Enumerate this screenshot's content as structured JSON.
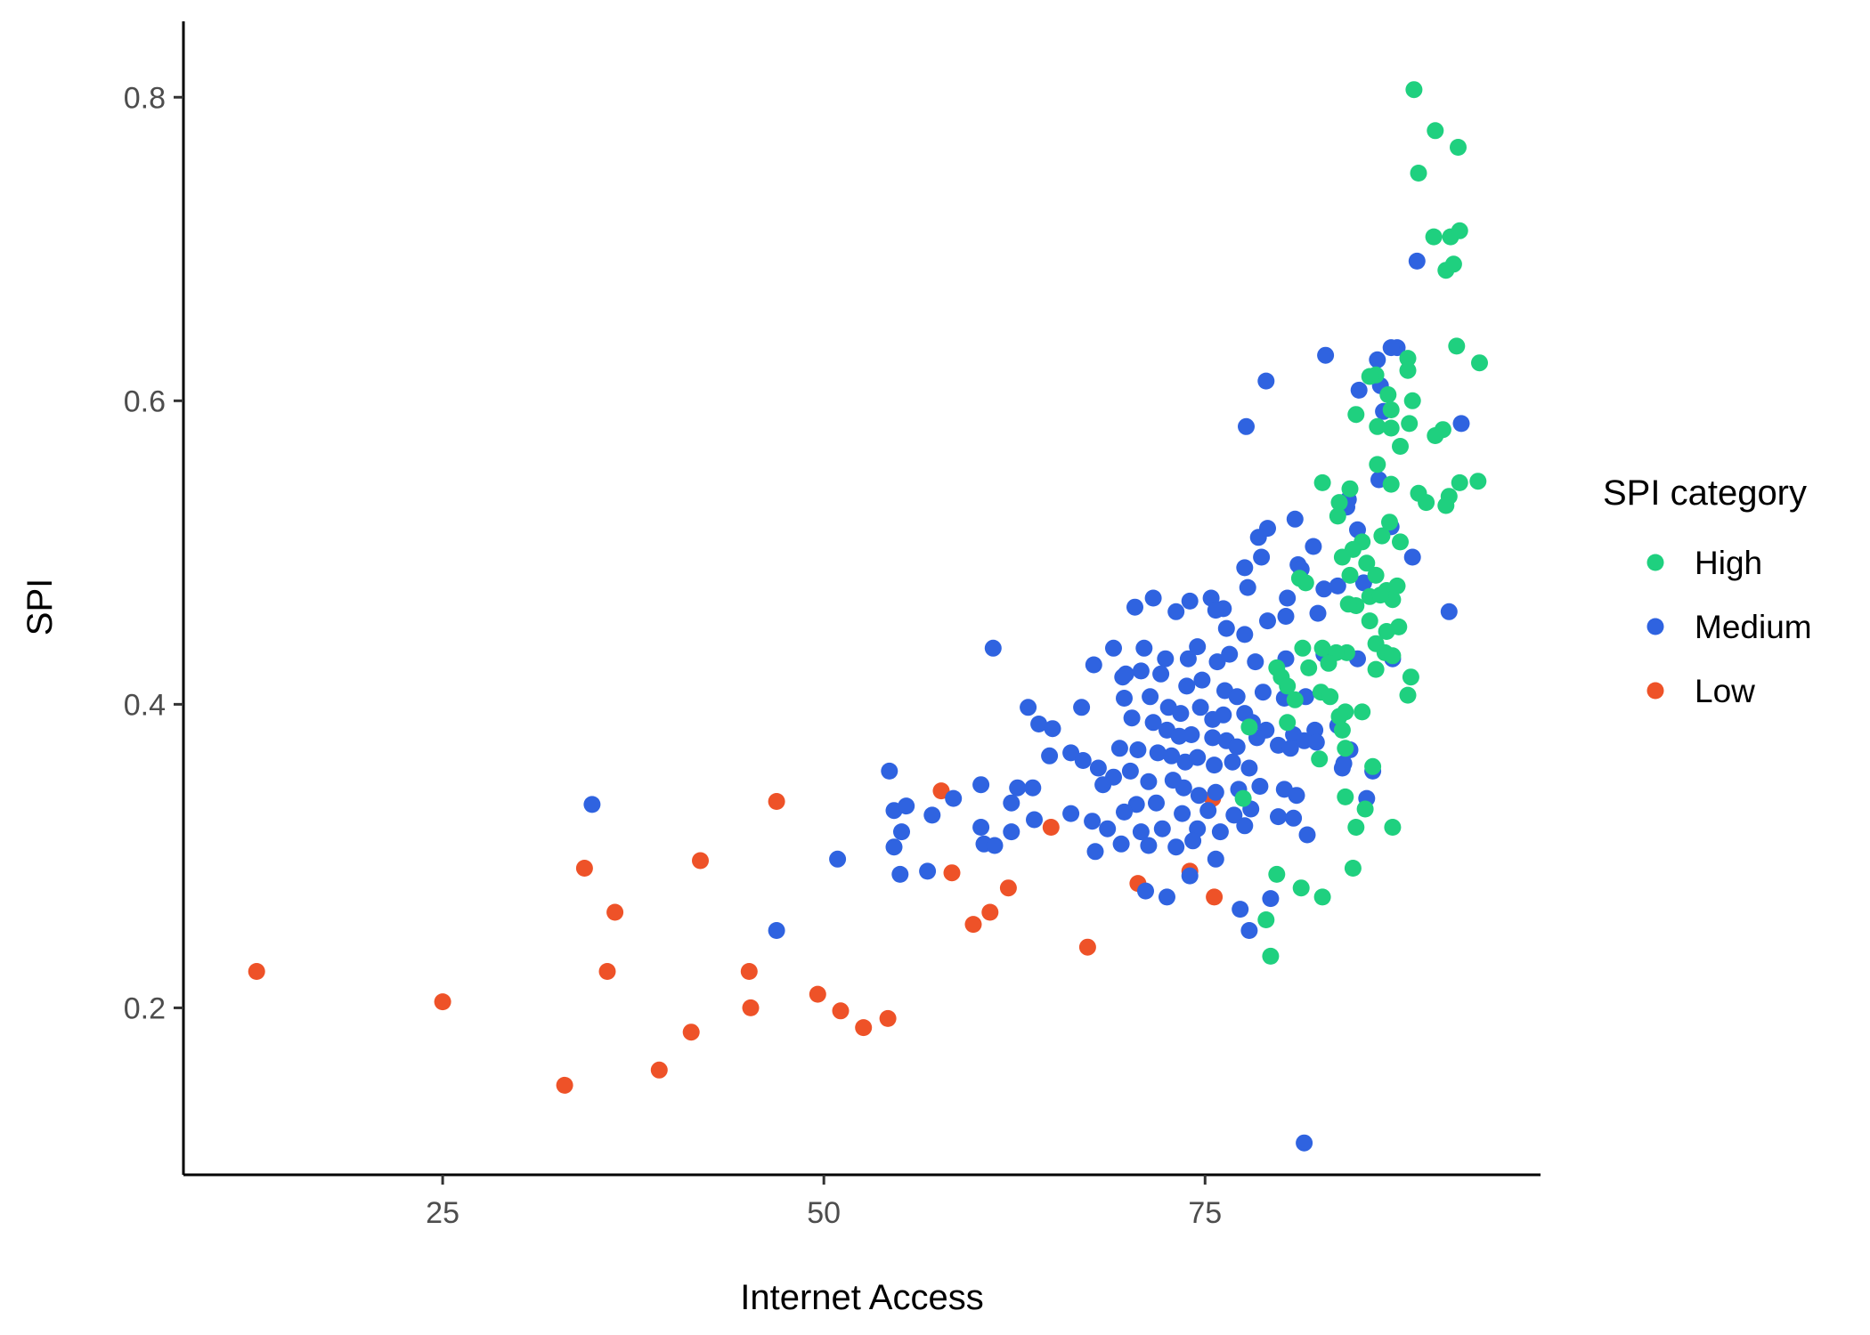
{
  "chart_data": {
    "type": "scatter",
    "title": "",
    "xlabel": "Internet Access",
    "ylabel": "SPI",
    "xlim": [
      8,
      97
    ],
    "ylim": [
      0.09,
      0.85
    ],
    "x_ticks": [
      25,
      50,
      75
    ],
    "x_tick_labels": [
      "25",
      "50",
      "75"
    ],
    "y_ticks": [
      0.2,
      0.4,
      0.6,
      0.8
    ],
    "y_tick_labels": [
      "0.2",
      "0.4",
      "0.6",
      "0.8"
    ],
    "grid": false,
    "legend": {
      "title": "SPI category",
      "position": "right",
      "entries": [
        "High",
        "Medium",
        "Low"
      ]
    },
    "colors": {
      "High": "#1fd07f",
      "Medium": "#2f63e0",
      "Low": "#ee5228"
    },
    "series": [
      {
        "name": "High",
        "points": [
          [
            88.7,
            0.805
          ],
          [
            90.1,
            0.778
          ],
          [
            91.6,
            0.767
          ],
          [
            89.0,
            0.75
          ],
          [
            90.0,
            0.708
          ],
          [
            91.1,
            0.708
          ],
          [
            91.7,
            0.712
          ],
          [
            90.8,
            0.686
          ],
          [
            91.3,
            0.69
          ],
          [
            91.5,
            0.636
          ],
          [
            93.0,
            0.625
          ],
          [
            88.3,
            0.628
          ],
          [
            88.3,
            0.62
          ],
          [
            86.2,
            0.617
          ],
          [
            85.8,
            0.616
          ],
          [
            87.0,
            0.604
          ],
          [
            88.6,
            0.6
          ],
          [
            87.2,
            0.594
          ],
          [
            84.9,
            0.591
          ],
          [
            86.3,
            0.583
          ],
          [
            87.2,
            0.582
          ],
          [
            90.6,
            0.581
          ],
          [
            90.1,
            0.577
          ],
          [
            88.4,
            0.585
          ],
          [
            87.8,
            0.57
          ],
          [
            86.3,
            0.558
          ],
          [
            92.9,
            0.547
          ],
          [
            91.7,
            0.546
          ],
          [
            84.5,
            0.542
          ],
          [
            87.2,
            0.545
          ],
          [
            91.0,
            0.537
          ],
          [
            89.0,
            0.539
          ],
          [
            89.5,
            0.533
          ],
          [
            90.8,
            0.531
          ],
          [
            83.8,
            0.533
          ],
          [
            82.7,
            0.546
          ],
          [
            83.7,
            0.524
          ],
          [
            87.1,
            0.52
          ],
          [
            86.6,
            0.511
          ],
          [
            87.8,
            0.507
          ],
          [
            85.3,
            0.507
          ],
          [
            84.7,
            0.502
          ],
          [
            84.0,
            0.497
          ],
          [
            85.6,
            0.493
          ],
          [
            84.5,
            0.485
          ],
          [
            86.2,
            0.485
          ],
          [
            86.9,
            0.475
          ],
          [
            87.3,
            0.469
          ],
          [
            85.8,
            0.471
          ],
          [
            86.5,
            0.472
          ],
          [
            87.6,
            0.478
          ],
          [
            81.2,
            0.483
          ],
          [
            81.6,
            0.48
          ],
          [
            84.9,
            0.465
          ],
          [
            84.4,
            0.466
          ],
          [
            85.8,
            0.455
          ],
          [
            87.7,
            0.451
          ],
          [
            86.9,
            0.448
          ],
          [
            86.2,
            0.44
          ],
          [
            86.8,
            0.434
          ],
          [
            87.3,
            0.432
          ],
          [
            84.3,
            0.434
          ],
          [
            82.7,
            0.437
          ],
          [
            81.4,
            0.437
          ],
          [
            83.6,
            0.434
          ],
          [
            83.1,
            0.427
          ],
          [
            81.8,
            0.424
          ],
          [
            79.7,
            0.424
          ],
          [
            80.0,
            0.418
          ],
          [
            86.2,
            0.423
          ],
          [
            88.5,
            0.418
          ],
          [
            80.4,
            0.412
          ],
          [
            80.9,
            0.403
          ],
          [
            82.6,
            0.408
          ],
          [
            83.2,
            0.405
          ],
          [
            85.3,
            0.395
          ],
          [
            84.2,
            0.395
          ],
          [
            83.8,
            0.392
          ],
          [
            88.3,
            0.406
          ],
          [
            77.9,
            0.385
          ],
          [
            80.4,
            0.388
          ],
          [
            84.0,
            0.383
          ],
          [
            82.5,
            0.364
          ],
          [
            84.2,
            0.371
          ],
          [
            86.0,
            0.359
          ],
          [
            84.2,
            0.339
          ],
          [
            85.5,
            0.331
          ],
          [
            77.5,
            0.338
          ],
          [
            84.9,
            0.319
          ],
          [
            87.3,
            0.319
          ],
          [
            84.7,
            0.292
          ],
          [
            79.7,
            0.288
          ],
          [
            81.3,
            0.279
          ],
          [
            82.7,
            0.273
          ],
          [
            79.0,
            0.258
          ],
          [
            79.3,
            0.234
          ]
        ]
      },
      {
        "name": "Medium",
        "points": [
          [
            88.9,
            0.692
          ],
          [
            87.6,
            0.635
          ],
          [
            82.9,
            0.63
          ],
          [
            86.3,
            0.627
          ],
          [
            86.5,
            0.61
          ],
          [
            79.0,
            0.613
          ],
          [
            85.1,
            0.607
          ],
          [
            86.7,
            0.593
          ],
          [
            91.8,
            0.585
          ],
          [
            77.7,
            0.583
          ],
          [
            86.4,
            0.548
          ],
          [
            84.4,
            0.535
          ],
          [
            84.3,
            0.53
          ],
          [
            80.9,
            0.522
          ],
          [
            79.1,
            0.516
          ],
          [
            78.5,
            0.51
          ],
          [
            82.1,
            0.504
          ],
          [
            85.0,
            0.515
          ],
          [
            87.2,
            0.517
          ],
          [
            88.6,
            0.497
          ],
          [
            81.1,
            0.492
          ],
          [
            81.3,
            0.489
          ],
          [
            78.7,
            0.497
          ],
          [
            77.6,
            0.49
          ],
          [
            75.4,
            0.47
          ],
          [
            76.2,
            0.463
          ],
          [
            77.8,
            0.477
          ],
          [
            80.4,
            0.47
          ],
          [
            82.8,
            0.476
          ],
          [
            83.7,
            0.478
          ],
          [
            85.4,
            0.48
          ],
          [
            91.0,
            0.461
          ],
          [
            75.7,
            0.462
          ],
          [
            73.1,
            0.461
          ],
          [
            71.6,
            0.47
          ],
          [
            70.4,
            0.464
          ],
          [
            74.0,
            0.468
          ],
          [
            79.1,
            0.455
          ],
          [
            80.3,
            0.458
          ],
          [
            82.4,
            0.46
          ],
          [
            76.4,
            0.45
          ],
          [
            77.6,
            0.446
          ],
          [
            74.5,
            0.438
          ],
          [
            73.9,
            0.43
          ],
          [
            72.4,
            0.43
          ],
          [
            71.0,
            0.437
          ],
          [
            69.0,
            0.437
          ],
          [
            67.7,
            0.426
          ],
          [
            61.1,
            0.437
          ],
          [
            69.8,
            0.42
          ],
          [
            70.8,
            0.422
          ],
          [
            72.1,
            0.42
          ],
          [
            75.8,
            0.428
          ],
          [
            76.6,
            0.433
          ],
          [
            78.3,
            0.428
          ],
          [
            80.3,
            0.43
          ],
          [
            82.8,
            0.433
          ],
          [
            85.0,
            0.43
          ],
          [
            87.3,
            0.43
          ],
          [
            69.6,
            0.418
          ],
          [
            73.8,
            0.412
          ],
          [
            74.8,
            0.416
          ],
          [
            76.3,
            0.409
          ],
          [
            77.1,
            0.405
          ],
          [
            78.8,
            0.408
          ],
          [
            80.2,
            0.404
          ],
          [
            81.6,
            0.405
          ],
          [
            69.7,
            0.404
          ],
          [
            71.4,
            0.405
          ],
          [
            72.6,
            0.398
          ],
          [
            73.4,
            0.394
          ],
          [
            74.7,
            0.398
          ],
          [
            75.5,
            0.39
          ],
          [
            76.2,
            0.393
          ],
          [
            77.6,
            0.394
          ],
          [
            78.1,
            0.388
          ],
          [
            79.0,
            0.383
          ],
          [
            80.8,
            0.38
          ],
          [
            82.2,
            0.383
          ],
          [
            83.7,
            0.386
          ],
          [
            70.2,
            0.391
          ],
          [
            71.6,
            0.388
          ],
          [
            72.5,
            0.383
          ],
          [
            73.3,
            0.379
          ],
          [
            74.1,
            0.38
          ],
          [
            75.5,
            0.378
          ],
          [
            76.4,
            0.376
          ],
          [
            77.1,
            0.372
          ],
          [
            78.4,
            0.378
          ],
          [
            79.8,
            0.373
          ],
          [
            80.6,
            0.371
          ],
          [
            81.5,
            0.376
          ],
          [
            82.3,
            0.375
          ],
          [
            63.4,
            0.398
          ],
          [
            64.1,
            0.387
          ],
          [
            65.0,
            0.384
          ],
          [
            66.9,
            0.398
          ],
          [
            69.4,
            0.371
          ],
          [
            70.6,
            0.37
          ],
          [
            71.9,
            0.368
          ],
          [
            72.8,
            0.366
          ],
          [
            73.7,
            0.362
          ],
          [
            74.5,
            0.365
          ],
          [
            75.6,
            0.36
          ],
          [
            76.8,
            0.362
          ],
          [
            77.9,
            0.358
          ],
          [
            84.5,
            0.37
          ],
          [
            84.0,
            0.358
          ],
          [
            86.0,
            0.356
          ],
          [
            84.1,
            0.361
          ],
          [
            64.8,
            0.366
          ],
          [
            66.2,
            0.368
          ],
          [
            67.0,
            0.363
          ],
          [
            68.0,
            0.358
          ],
          [
            69.0,
            0.352
          ],
          [
            70.1,
            0.356
          ],
          [
            71.3,
            0.349
          ],
          [
            72.9,
            0.35
          ],
          [
            73.6,
            0.345
          ],
          [
            74.6,
            0.34
          ],
          [
            75.7,
            0.342
          ],
          [
            77.2,
            0.344
          ],
          [
            78.6,
            0.346
          ],
          [
            80.2,
            0.344
          ],
          [
            81.0,
            0.34
          ],
          [
            62.7,
            0.345
          ],
          [
            63.7,
            0.345
          ],
          [
            68.3,
            0.347
          ],
          [
            70.5,
            0.334
          ],
          [
            71.8,
            0.335
          ],
          [
            73.5,
            0.328
          ],
          [
            75.2,
            0.33
          ],
          [
            76.9,
            0.327
          ],
          [
            78.0,
            0.331
          ],
          [
            79.8,
            0.326
          ],
          [
            80.8,
            0.325
          ],
          [
            62.3,
            0.335
          ],
          [
            63.8,
            0.324
          ],
          [
            66.2,
            0.328
          ],
          [
            67.6,
            0.323
          ],
          [
            68.6,
            0.318
          ],
          [
            69.7,
            0.329
          ],
          [
            70.8,
            0.316
          ],
          [
            72.2,
            0.318
          ],
          [
            74.5,
            0.318
          ],
          [
            76.0,
            0.316
          ],
          [
            77.6,
            0.32
          ],
          [
            81.7,
            0.314
          ],
          [
            85.6,
            0.338
          ],
          [
            54.3,
            0.356
          ],
          [
            54.6,
            0.33
          ],
          [
            55.4,
            0.333
          ],
          [
            57.1,
            0.327
          ],
          [
            58.5,
            0.338
          ],
          [
            60.3,
            0.347
          ],
          [
            60.3,
            0.319
          ],
          [
            60.5,
            0.308
          ],
          [
            61.2,
            0.307
          ],
          [
            62.3,
            0.316
          ],
          [
            54.6,
            0.306
          ],
          [
            55.1,
            0.316
          ],
          [
            50.9,
            0.298
          ],
          [
            55.0,
            0.288
          ],
          [
            56.8,
            0.29
          ],
          [
            67.8,
            0.303
          ],
          [
            69.5,
            0.308
          ],
          [
            71.3,
            0.307
          ],
          [
            73.1,
            0.306
          ],
          [
            74.2,
            0.31
          ],
          [
            75.7,
            0.298
          ],
          [
            74.0,
            0.287
          ],
          [
            71.1,
            0.277
          ],
          [
            72.5,
            0.273
          ],
          [
            77.3,
            0.265
          ],
          [
            79.3,
            0.272
          ],
          [
            77.9,
            0.251
          ],
          [
            46.9,
            0.251
          ],
          [
            34.8,
            0.334
          ],
          [
            81.5,
            0.111
          ],
          [
            87.2,
            0.635
          ]
        ]
      },
      {
        "name": "Low",
        "points": [
          [
            12.8,
            0.224
          ],
          [
            25.0,
            0.204
          ],
          [
            33.0,
            0.149
          ],
          [
            34.3,
            0.292
          ],
          [
            35.8,
            0.224
          ],
          [
            36.3,
            0.263
          ],
          [
            39.2,
            0.159
          ],
          [
            41.3,
            0.184
          ],
          [
            41.9,
            0.297
          ],
          [
            45.1,
            0.224
          ],
          [
            45.2,
            0.2
          ],
          [
            46.9,
            0.336
          ],
          [
            49.6,
            0.209
          ],
          [
            51.1,
            0.198
          ],
          [
            52.6,
            0.187
          ],
          [
            54.2,
            0.193
          ],
          [
            57.7,
            0.343
          ],
          [
            58.4,
            0.289
          ],
          [
            59.8,
            0.255
          ],
          [
            60.9,
            0.263
          ],
          [
            62.1,
            0.279
          ],
          [
            64.9,
            0.319
          ],
          [
            67.3,
            0.24
          ],
          [
            70.6,
            0.282
          ],
          [
            74.0,
            0.29
          ],
          [
            75.6,
            0.273
          ],
          [
            75.5,
            0.338
          ]
        ]
      }
    ]
  }
}
